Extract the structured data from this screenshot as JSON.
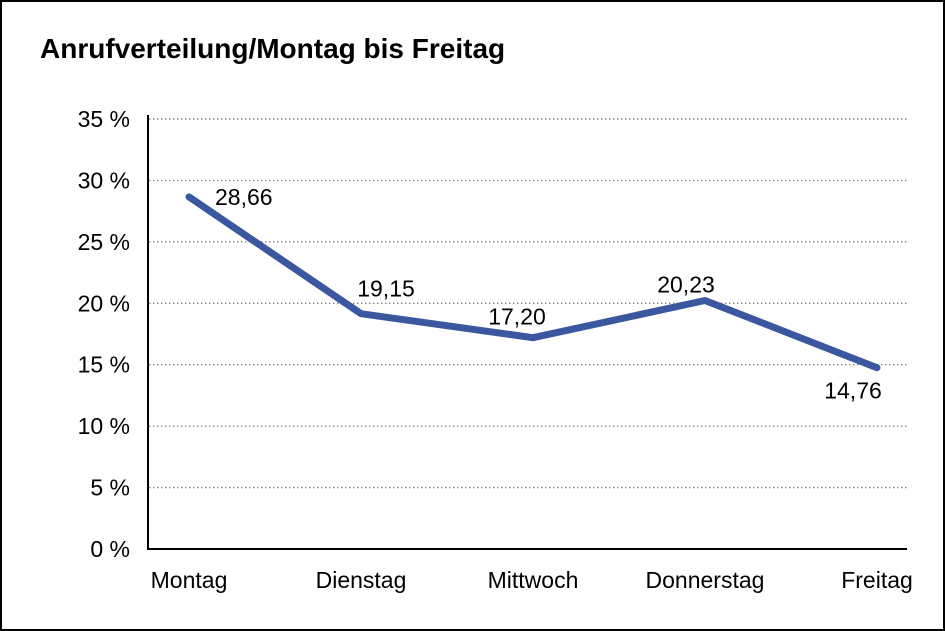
{
  "window": {
    "background": "#ffffff",
    "border_color": "#000000"
  },
  "chart": {
    "title": "Anrufverteilung/Montag bis Freitag"
  },
  "chart_data": {
    "type": "line",
    "title": "Anrufverteilung/Montag bis Freitag",
    "categories": [
      "Montag",
      "Dienstag",
      "Mittwoch",
      "Donnerstag",
      "Freitag"
    ],
    "values": [
      28.66,
      19.15,
      17.2,
      20.23,
      14.76
    ],
    "point_labels": [
      "28,66",
      "19,15",
      "17,20",
      "20,23",
      "14,76"
    ],
    "y_tick_values": [
      0,
      5,
      10,
      15,
      20,
      25,
      30,
      35
    ],
    "y_tick_labels": [
      "0 %",
      "5 %",
      "10 %",
      "15 %",
      "20 %",
      "25 %",
      "30 %",
      "35 %"
    ],
    "ylim": [
      0,
      35
    ],
    "y_step": 5,
    "xlabel": "",
    "ylabel": "",
    "legend": "none",
    "grid": "horizontal-dotted",
    "line_color": "#3B57A0",
    "grid_color": "#7f7f7f",
    "axis_color": "#000000",
    "text_color": "#000000"
  }
}
